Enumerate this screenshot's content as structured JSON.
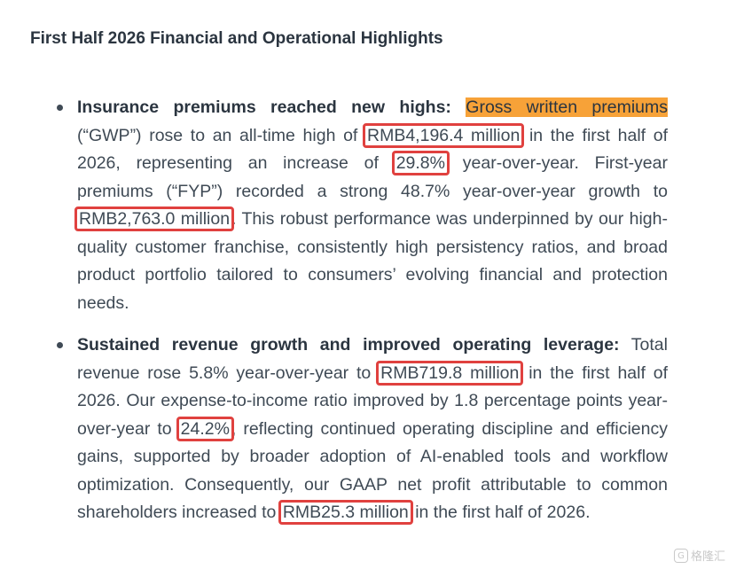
{
  "title": "First Half 2026 Financial and Operational Highlights",
  "bullets": [
    {
      "heading": "Insurance premiums reached new highs:",
      "highlight": "Gross written premiums",
      "t1": " (“GWP”) rose to an all-time high of ",
      "v1": "RMB4,196.4 million",
      "t2": " in the first half of 2026, representing an increase of ",
      "v2": "29.8%",
      "t3": " year-over-year. First-year premiums (“FYP”) recorded a strong 48.7% year-over-year growth to ",
      "v3": "RMB2,763.0 million",
      "t4": ". This robust performance was underpinned by our high-quality customer franchise, consistently high persistency ratios, and broad product portfolio tailored to consumers’ evolving financial and protection needs."
    },
    {
      "heading": "Sustained revenue growth and improved operating leverage:",
      "t0": " Total revenue rose 5.8% year-over-year to ",
      "v1": "RMB719.8 million",
      "t1": " in the first half of 2026. Our expense-to-income ratio improved by 1.8 percentage points year-over-year to ",
      "v2": "24.2%",
      "t2": ", reflecting continued operating discipline and efficiency gains, supported by broader adoption of AI-enabled tools and workflow optimization. Consequently, our GAAP net profit attributable to common shareholders increased to ",
      "v3": "RMB25.3 million",
      "t3": " in the first half of 2026."
    }
  ],
  "watermark": {
    "logo": "G",
    "text": "格隆汇"
  },
  "colors": {
    "highlight": "#f7a238",
    "box": "#e0413f",
    "text": "#3f4a55"
  }
}
